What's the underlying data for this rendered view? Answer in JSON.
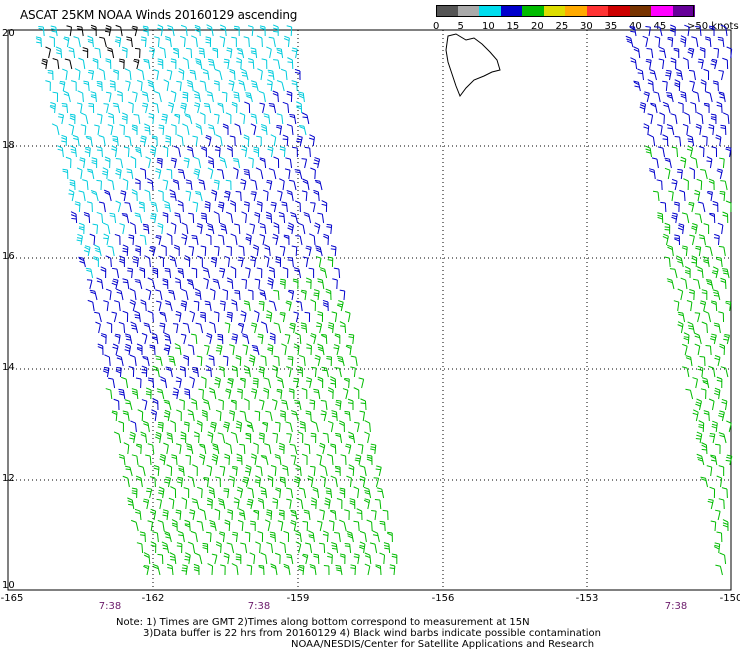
{
  "title": "ASCAT 25KM NOAA Winds 20160129 ascending",
  "colorbar": {
    "unit_label": ">50 knots",
    "ticks": [
      "0",
      "5",
      "10",
      "15",
      "20",
      "25",
      "30",
      "35",
      "40",
      "45"
    ],
    "colors": [
      "#555555",
      "#aaaaaa",
      "#00ddee",
      "#0000cc",
      "#00bb00",
      "#dddd00",
      "#ffaa00",
      "#ff3333",
      "#cc0000",
      "#773300",
      "#ff00ff",
      "#660099"
    ]
  },
  "axes": {
    "lat_labels": [
      "20",
      "18",
      "16",
      "14",
      "12",
      "10"
    ],
    "lon_labels": [
      "-165",
      "-162",
      "-159",
      "-156",
      "-153",
      "-150"
    ],
    "time_labels": [
      "7:38",
      "7:38",
      "7:38"
    ]
  },
  "colors": {
    "light_wind": "#00ccdd",
    "moderate_wind": "#0000cc",
    "fresh_wind": "#00bb00",
    "contaminated": "#000000",
    "time_label": "#6a1a6a"
  },
  "notes": {
    "line1": "Note: 1) Times are GMT 2)Times along bottom correspond to measurement at 15N",
    "line2": "3)Data buffer is 22 hrs from 20160129 4) Black wind barbs indicate possible contamination",
    "line3": "NOAA/NESDIS/Center for Satellite Applications and Research"
  }
}
